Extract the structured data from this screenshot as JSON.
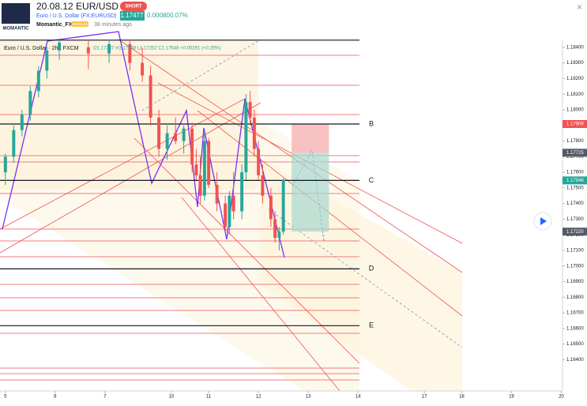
{
  "header": {
    "logo": "MOMANTIC",
    "title": "20.08.12 EUR/USD",
    "badge": "SHORT",
    "symbol": "Euro / U.S. Dollar (FX:EURUSD)",
    "price": "1.17477",
    "change": "0.00080",
    "change_pct": "0.07%",
    "author": "Momantic_FX",
    "author_badge": "PREMIUM",
    "time": "38 minutes ago"
  },
  "chart_data": {
    "type": "candlestick",
    "legend": "Euro / U.S. Dollar · 2h · FXCM",
    "ohlc_text": "O1.17257 H1.17568 L1.17252 C1.17548 +0.00291 (+0.25%)",
    "up_color": "#26a69a",
    "down_color": "#ef5350",
    "x": [
      0,
      2,
      4,
      6,
      8,
      10,
      13,
      20,
      25,
      30,
      33,
      35,
      37,
      39,
      41,
      43,
      45,
      46,
      47,
      48,
      49,
      51,
      53,
      54,
      55,
      57,
      58,
      59,
      60,
      61,
      62,
      64,
      65,
      66,
      67
    ],
    "open": [
      1.176,
      1.177,
      1.1787,
      1.1797,
      1.1812,
      1.1825,
      1.1838,
      1.184,
      1.1836,
      1.1842,
      1.183,
      1.1822,
      1.1795,
      1.1775,
      1.1785,
      1.178,
      1.1788,
      1.1765,
      1.1758,
      1.1745,
      1.178,
      1.1752,
      1.174,
      1.1725,
      1.1745,
      1.1735,
      1.176,
      1.1805,
      1.1795,
      1.1775,
      1.1758,
      1.1745,
      1.173,
      1.1718,
      1.1722
    ],
    "high": [
      1.1772,
      1.179,
      1.18,
      1.1815,
      1.1828,
      1.184,
      1.1845,
      1.1845,
      1.1845,
      1.1845,
      1.184,
      1.1828,
      1.18,
      1.179,
      1.1795,
      1.179,
      1.1792,
      1.1775,
      1.177,
      1.1785,
      1.1782,
      1.176,
      1.1745,
      1.1748,
      1.176,
      1.1765,
      1.181,
      1.1812,
      1.18,
      1.178,
      1.1765,
      1.175,
      1.1735,
      1.1725,
      1.1756
    ],
    "low": [
      1.1752,
      1.1766,
      1.1783,
      1.1793,
      1.1808,
      1.182,
      1.1832,
      1.1826,
      1.183,
      1.1825,
      1.1818,
      1.179,
      1.177,
      1.1768,
      1.1778,
      1.1772,
      1.176,
      1.1755,
      1.174,
      1.1742,
      1.175,
      1.1735,
      1.1722,
      1.172,
      1.173,
      1.173,
      1.1755,
      1.179,
      1.177,
      1.1755,
      1.174,
      1.1725,
      1.1715,
      1.171,
      1.172
    ],
    "close": [
      1.177,
      1.1787,
      1.1797,
      1.1812,
      1.1825,
      1.1838,
      1.1843,
      1.1836,
      1.1842,
      1.183,
      1.1822,
      1.1795,
      1.1775,
      1.1785,
      1.178,
      1.1788,
      1.1765,
      1.1758,
      1.1745,
      1.178,
      1.1752,
      1.174,
      1.1725,
      1.1745,
      1.1735,
      1.176,
      1.1805,
      1.1795,
      1.1775,
      1.1758,
      1.1745,
      1.173,
      1.1718,
      1.1722,
      1.1755
    ],
    "xlim": [
      -1.3,
      134.3
    ],
    "xticks": [
      {
        "value": 0,
        "label": "5"
      },
      {
        "value": 12,
        "label": "6"
      },
      {
        "value": 24,
        "label": "7"
      },
      {
        "value": 40,
        "label": "10"
      },
      {
        "value": 49,
        "label": "11"
      },
      {
        "value": 61,
        "label": "12"
      },
      {
        "value": 73,
        "label": "13"
      },
      {
        "value": 85,
        "label": "14"
      },
      {
        "value": 101,
        "label": "17"
      },
      {
        "value": 110,
        "label": "18"
      },
      {
        "value": 122,
        "label": "19"
      },
      {
        "value": 134,
        "label": "20"
      }
    ],
    "ylim": [
      1.162,
      1.1845
    ],
    "yticks": [
      {
        "value": 1.184,
        "label": "1.18400"
      },
      {
        "value": 1.183,
        "label": "1.18300"
      },
      {
        "value": 1.182,
        "label": "1.18200"
      },
      {
        "value": 1.181,
        "label": "1.18100"
      },
      {
        "value": 1.18,
        "label": "1.18000"
      },
      {
        "value": 1.179,
        "label": "1.17900"
      },
      {
        "value": 1.178,
        "label": "1.17800"
      },
      {
        "value": 1.177,
        "label": "1.17700"
      },
      {
        "value": 1.176,
        "label": "1.17600"
      },
      {
        "value": 1.175,
        "label": "1.17500"
      },
      {
        "value": 1.174,
        "label": "1.17400"
      },
      {
        "value": 1.173,
        "label": "1.17300"
      },
      {
        "value": 1.172,
        "label": "1.17200"
      },
      {
        "value": 1.171,
        "label": "1.17100"
      },
      {
        "value": 1.17,
        "label": "1.17000"
      },
      {
        "value": 1.169,
        "label": "1.16900"
      },
      {
        "value": 1.168,
        "label": "1.16800"
      },
      {
        "value": 1.167,
        "label": "1.16700"
      },
      {
        "value": 1.166,
        "label": "1.16600"
      },
      {
        "value": 1.165,
        "label": "1.16500"
      },
      {
        "value": 1.164,
        "label": "1.16400"
      }
    ],
    "levels": [
      {
        "value": 1.18446
      },
      {
        "label": "B",
        "value": 1.17909
      },
      {
        "label": "C",
        "value": 1.17548
      },
      {
        "label": "D",
        "value": 1.16982
      },
      {
        "label": "E",
        "value": 1.16618
      }
    ],
    "position": {
      "stop": 1.17909,
      "entry": 1.17725,
      "target": 1.1722,
      "x": [
        69,
        78
      ]
    },
    "price_labels": [
      {
        "value": 1.17909,
        "label": "1.17909",
        "color": "#ef5350"
      },
      {
        "value": 1.17725,
        "label": "1.17725",
        "color": "#555b66"
      },
      {
        "value": 1.17548,
        "label": "1.17548",
        "color": "#26a69a"
      },
      {
        "value": 1.1722,
        "label": "1.17220",
        "color": "#555b66"
      }
    ]
  }
}
